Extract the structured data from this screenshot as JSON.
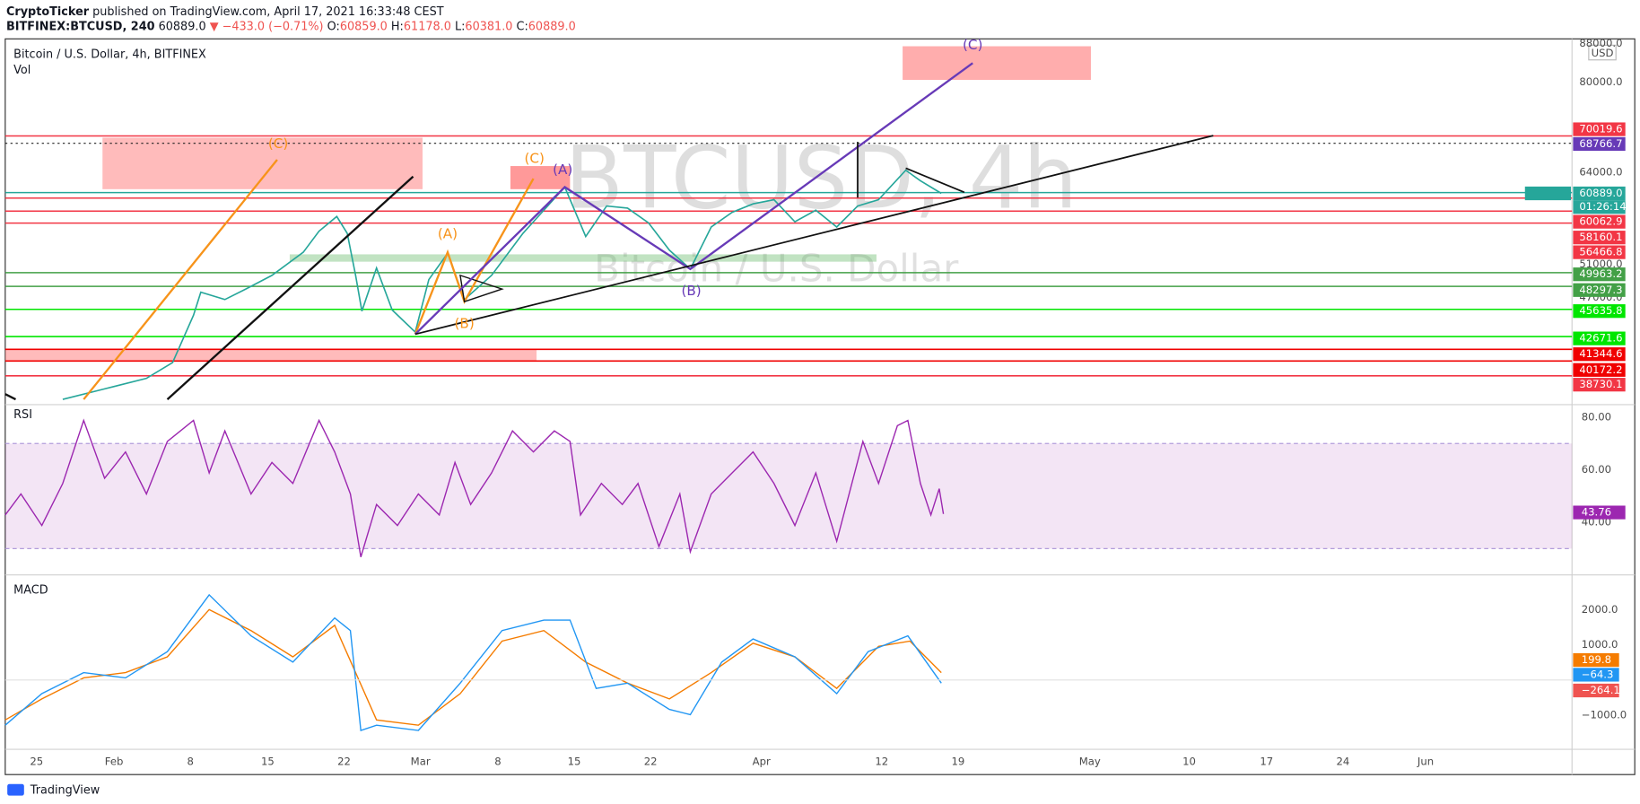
{
  "header": {
    "publisher": "CryptoTicker",
    "published": "published on TradingView.com, April 17, 2021 16:33:48 CEST",
    "symbol": "BITFINEX:BTCUSD, 240",
    "price": "60889.0",
    "change": "▼ −433.0 (−0.71%)",
    "ohlc": [
      {
        "key": "O:",
        "value": "60859.0"
      },
      {
        "key": "H:",
        "value": "61178.0"
      },
      {
        "key": "L:",
        "value": "60381.0"
      },
      {
        "key": "C:",
        "value": "60889.0"
      }
    ]
  },
  "legend": {
    "title": "Bitcoin / U.S. Dollar, 4h, BITFINEX",
    "volume": "Vol",
    "rsi": "RSI",
    "macd": "MACD"
  },
  "watermark": {
    "symbol": "BTCUSD, 4h",
    "name": "Bitcoin / U.S. Dollar"
  },
  "price_axis": {
    "currency": "USD",
    "log_scale": true,
    "ticks": [
      {
        "value": 88000,
        "label": "88000.0"
      },
      {
        "value": 80000,
        "label": "80000.0"
      },
      {
        "value": 64000,
        "label": "64000.0"
      },
      {
        "value": 51000,
        "label": "51000.0"
      },
      {
        "value": 47000,
        "label": "47000.0"
      }
    ],
    "levels": [
      {
        "value": 70019.6,
        "color": "#f23645"
      },
      {
        "value": 68766.7,
        "color": "#673ab7"
      },
      {
        "value": {
          "value": 60889,
          "label": "60889.0"
        },
        "color": "#26a69a"
      },
      {
        "value": 60062.9,
        "color": "#f23645"
      },
      {
        "value": 58160.1,
        "color": "#f23645"
      },
      {
        "value": 56466.8,
        "color": "#f23645"
      },
      {
        "value": 49963.2,
        "color": "#43a047"
      },
      {
        "value": 48297.3,
        "color": "#43a047"
      },
      {
        "value": 45635.8,
        "color": "#00e600"
      },
      {
        "value": 42671.6,
        "color": "#00e600"
      },
      {
        "value": 41344.6,
        "color": "#f00000"
      },
      {
        "value": 40172.2,
        "color": "#f00000"
      },
      {
        "value": 38730.1,
        "color": "#f23645"
      }
    ],
    "countdown": "01:26:14"
  },
  "rsi_axis": {
    "ticks": [
      {
        "value": 80,
        "label": "80.00"
      },
      {
        "value": 60,
        "label": "60.00"
      },
      {
        "value": 40,
        "label": "40.00"
      }
    ],
    "current": 43.76
  },
  "macd_axis": {
    "ticks": [
      {
        "value": 2000,
        "label": "2000.0"
      },
      {
        "value": 1000,
        "label": "1000.0"
      },
      {
        "value": -1000,
        "label": "−1000.0"
      }
    ],
    "values": [
      {
        "value": 199.8,
        "color": "#f57c00"
      },
      {
        "value": {
          "value": -64.3,
          "label": "−64.3"
        },
        "color": "#2196f3"
      },
      {
        "value": {
          "value": -264.1,
          "label": "−264.1"
        },
        "color": "#ef5350"
      }
    ]
  },
  "time_axis": [
    "25",
    "Feb",
    "8",
    "15",
    "22",
    "Mar",
    "8",
    "15",
    "22",
    "Apr",
    "12",
    "19",
    "May",
    "10",
    "17",
    "24",
    "Jun"
  ],
  "wave_labels": [
    "(C)",
    "(C)",
    "(A)",
    "(B)",
    "(A)",
    "(B)",
    "(C)"
  ],
  "footer": "TradingView"
}
